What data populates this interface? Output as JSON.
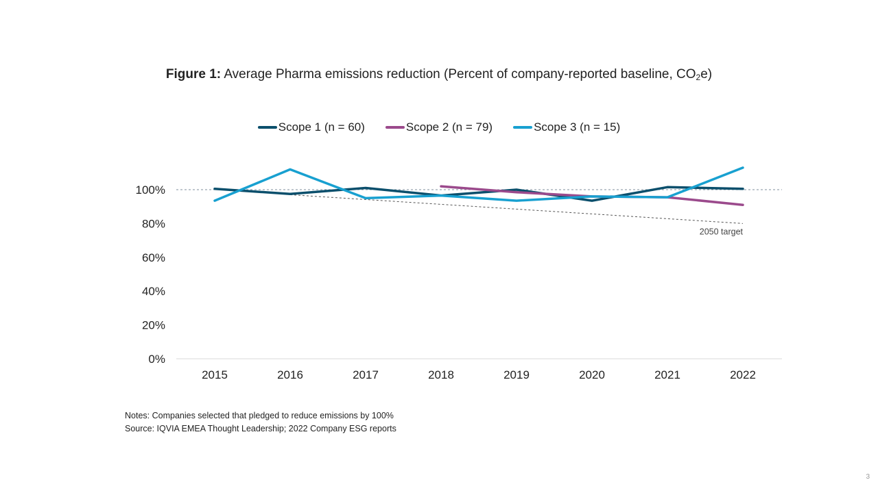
{
  "title_bold": "Figure 1:",
  "title_main": "Average Pharma emissions reduction (Percent of company-reported baseline, CO",
  "title_sub": "2",
  "title_end": "e)",
  "notes": [
    "Notes: Companies selected that pledged to reduce emissions by 100%",
    "Source: IQVIA EMEA Thought Leadership; 2022 Company ESG reports"
  ],
  "page_number": "3",
  "chart_data": {
    "type": "line",
    "x": [
      "2015",
      "2016",
      "2017",
      "2018",
      "2019",
      "2020",
      "2021",
      "2022"
    ],
    "ylim": [
      0,
      100
    ],
    "yticks": [
      "0%",
      "20%",
      "40%",
      "60%",
      "80%",
      "100%"
    ],
    "legend_position": "top-center",
    "grid": false,
    "series": [
      {
        "name": "Scope 1 (n = 60)",
        "color": "#0b4f6c",
        "values": [
          100.5,
          97.5,
          101,
          96.5,
          100,
          93.5,
          101.5,
          100.5
        ]
      },
      {
        "name": "Scope 2 (n = 79)",
        "color": "#9b4a8c",
        "values": [
          null,
          null,
          null,
          102,
          98.5,
          96,
          95.5,
          91
        ]
      },
      {
        "name": "Scope 3 (n = 15)",
        "color": "#18a0d0",
        "values": [
          93.5,
          112,
          95,
          96.5,
          93.5,
          96,
          95.5,
          113
        ]
      }
    ],
    "reference_line": {
      "value": 100,
      "style": "dashed"
    },
    "target_line": {
      "from": {
        "x": "2016",
        "y": 97
      },
      "to": {
        "x": "2022",
        "y": 80
      },
      "style": "dashed"
    },
    "annotation": "2050 target"
  }
}
